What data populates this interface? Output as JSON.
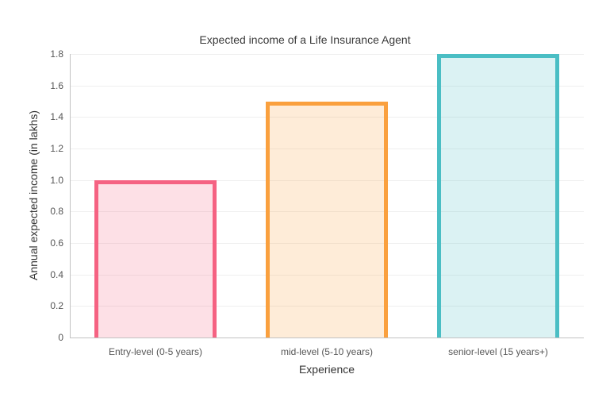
{
  "chart_data": {
    "type": "bar",
    "title": "Expected income of a Life Insurance Agent",
    "xlabel": "Experience",
    "ylabel": "Annual expected income (in lakhs)",
    "categories": [
      "Entry-level (0-5 years)",
      "mid-level (5-10 years)",
      "senior-level (15 years+)"
    ],
    "values": [
      1.0,
      1.5,
      1.8
    ],
    "ylim": [
      0,
      1.8
    ],
    "ytick_interval": 0.2,
    "ytick_labels": [
      "0",
      "0.2",
      "0.4",
      "0.6",
      "0.8",
      "1.0",
      "1.2",
      "1.4",
      "1.6",
      "1.8"
    ],
    "grid": true,
    "legend": false,
    "bar_styles": [
      {
        "border": "#F56282",
        "fill": "rgba(245,98,130,0.2)"
      },
      {
        "border": "#FAA03E",
        "fill": "rgba(250,160,62,0.2)"
      },
      {
        "border": "#4ABEC4",
        "fill": "rgba(74,190,196,0.2)"
      }
    ]
  },
  "colors": {
    "background": "#ffffff",
    "title_text": "#3a3a3a",
    "axis_title_text": "#333333",
    "tick_text": "#565656",
    "gridline": "#efefef",
    "axis_line": "#c2c2c2"
  }
}
